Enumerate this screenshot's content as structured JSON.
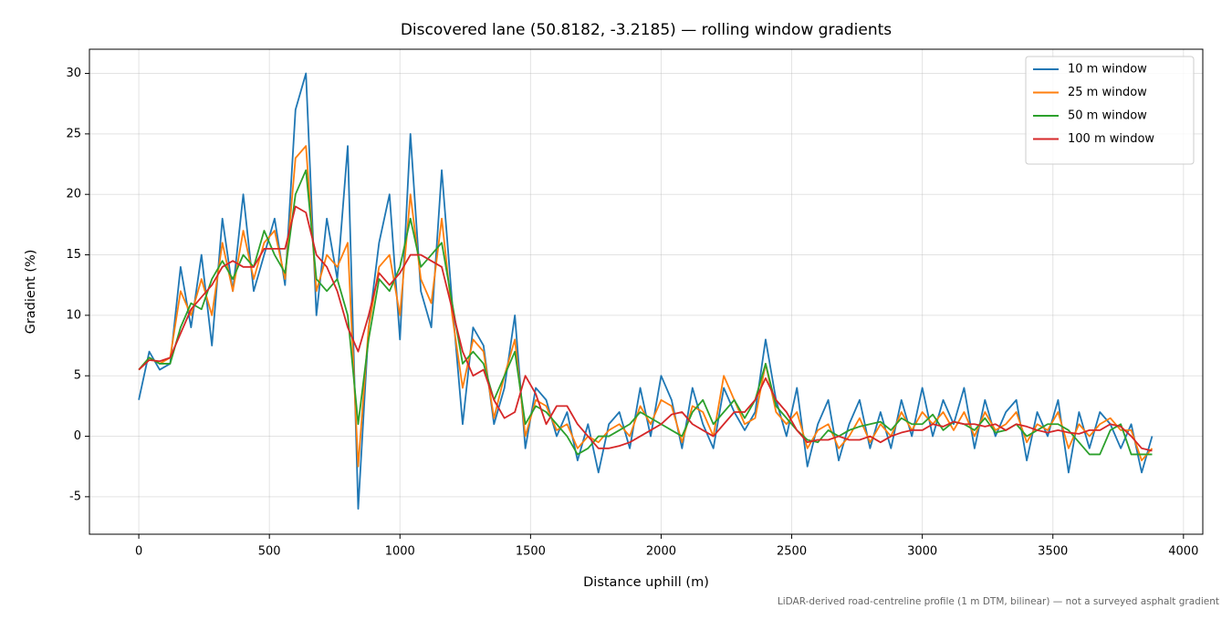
{
  "chart_data": {
    "type": "line",
    "title": "Discovered lane (50.8182, -3.2185) — rolling window gradients",
    "x_label": "Distance uphill (m)",
    "y_label": "Gradient (%)",
    "footnote": "LiDAR-derived road-centreline profile (1 m DTM, bilinear) — not a surveyed asphalt gradient",
    "xlim": [
      -189,
      4074
    ],
    "ylim": [
      -8.1,
      32
    ],
    "xticks": [
      0,
      500,
      1000,
      1500,
      2000,
      2500,
      3000,
      3500,
      4000
    ],
    "yticks": [
      -5,
      0,
      5,
      10,
      15,
      20,
      25,
      30
    ],
    "grid": true,
    "legend": "upper right",
    "x": [
      0,
      40,
      80,
      120,
      160,
      200,
      240,
      280,
      320,
      360,
      400,
      440,
      480,
      520,
      560,
      600,
      640,
      680,
      720,
      760,
      800,
      840,
      880,
      920,
      960,
      1000,
      1040,
      1080,
      1120,
      1160,
      1200,
      1240,
      1280,
      1320,
      1360,
      1400,
      1440,
      1480,
      1520,
      1560,
      1600,
      1640,
      1680,
      1720,
      1760,
      1800,
      1840,
      1880,
      1920,
      1960,
      2000,
      2040,
      2080,
      2120,
      2160,
      2200,
      2240,
      2280,
      2320,
      2360,
      2400,
      2440,
      2480,
      2520,
      2560,
      2600,
      2640,
      2680,
      2720,
      2760,
      2800,
      2840,
      2880,
      2920,
      2960,
      3000,
      3040,
      3080,
      3120,
      3160,
      3200,
      3240,
      3280,
      3320,
      3360,
      3400,
      3440,
      3480,
      3520,
      3560,
      3600,
      3640,
      3680,
      3720,
      3760,
      3800,
      3840,
      3880
    ],
    "series": [
      {
        "name": "10 m window",
        "color": "#1f77b4",
        "values": [
          3,
          7,
          5.5,
          6,
          14,
          9,
          15,
          7.5,
          18,
          12,
          20,
          12,
          15,
          18,
          12.5,
          27,
          30,
          10,
          18,
          13,
          24,
          -6,
          9,
          16,
          20,
          8,
          25,
          12,
          9,
          22,
          11,
          1,
          9,
          7.5,
          1,
          4,
          10,
          -1,
          4,
          3,
          0,
          2,
          -2,
          1,
          -3,
          1,
          2,
          -1,
          4,
          0,
          5,
          3,
          -1,
          4,
          1,
          -1,
          4,
          2,
          0.5,
          2,
          8,
          3,
          0,
          4,
          -2.5,
          1,
          3,
          -2,
          1,
          3,
          -1,
          2,
          -1,
          3,
          0,
          4,
          0,
          3,
          1,
          4,
          -1,
          3,
          0,
          2,
          3,
          -2,
          2,
          0,
          3,
          -3,
          2,
          -1,
          2,
          1,
          -1,
          1,
          -3,
          0
        ]
      },
      {
        "name": "25 m window",
        "color": "#ff7f0e",
        "values": [
          5.5,
          6.5,
          6,
          6.5,
          12,
          10,
          13,
          10,
          16,
          12,
          17,
          13,
          16,
          17,
          13,
          23,
          24,
          12,
          15,
          14,
          16,
          -2.5,
          9,
          14,
          15,
          10,
          20,
          13,
          11,
          18,
          10,
          4,
          8,
          7,
          1.5,
          5,
          8,
          0,
          3,
          2.5,
          0.5,
          1,
          -1,
          0,
          -0.5,
          0.5,
          1,
          0,
          2.5,
          1,
          3,
          2.5,
          -0.5,
          2.5,
          2,
          0,
          5,
          3,
          1,
          1.5,
          6,
          2,
          1,
          2,
          -1,
          0.5,
          1,
          -1,
          0,
          1.5,
          -0.5,
          1,
          0,
          2,
          0.5,
          2,
          1,
          2,
          0.5,
          2,
          0,
          2,
          0.5,
          1,
          2,
          -0.5,
          1,
          0.5,
          2,
          -1,
          1,
          0,
          1,
          1.5,
          0.5,
          0.5,
          -2,
          -1
        ]
      },
      {
        "name": "50 m window",
        "color": "#2ca02c",
        "values": [
          5.5,
          6.5,
          6,
          6,
          9,
          11,
          10.5,
          13,
          14.5,
          13,
          15,
          14,
          17,
          15,
          13.5,
          20,
          22,
          13,
          12,
          13,
          10,
          1,
          8,
          13,
          12,
          14,
          18,
          14,
          15,
          16,
          11,
          6,
          7,
          6,
          3,
          5,
          7,
          1,
          2.5,
          2,
          1,
          0,
          -1.5,
          -1,
          0,
          0,
          0.5,
          1,
          2,
          1.5,
          1,
          0.5,
          0,
          2,
          3,
          1,
          2,
          3,
          1.5,
          3,
          6,
          2.5,
          1.5,
          0.5,
          -0.3,
          -0.5,
          0.5,
          0,
          0.5,
          0.8,
          1,
          1.2,
          0.5,
          1.5,
          1,
          1,
          1.8,
          0.5,
          1.2,
          1,
          0.5,
          1.5,
          0.3,
          0.5,
          1,
          0,
          0.5,
          1,
          1,
          0.5,
          -0.5,
          -1.5,
          -1.5,
          0.5,
          1,
          -1.5,
          -1.5,
          -1.5
        ]
      },
      {
        "name": "100 m window",
        "color": "#d62728",
        "values": [
          5.5,
          6.3,
          6.2,
          6.5,
          8.5,
          10.5,
          11.5,
          12.5,
          14,
          14.5,
          14,
          14,
          15.5,
          15.5,
          15.5,
          19,
          18.5,
          15,
          14,
          12,
          9,
          7,
          10,
          13.5,
          12.5,
          13.5,
          15,
          15,
          14.5,
          14,
          10.5,
          7,
          5,
          5.5,
          3,
          1.5,
          2,
          5,
          3.5,
          1,
          2.5,
          2.5,
          1,
          0,
          -1,
          -1,
          -0.8,
          -0.5,
          0,
          0.5,
          1,
          1.8,
          2,
          1,
          0.5,
          0,
          1,
          2,
          2,
          3,
          4.8,
          3,
          2,
          0.5,
          -0.5,
          -0.3,
          -0.3,
          0,
          -0.3,
          -0.3,
          0,
          -0.5,
          0,
          0.3,
          0.5,
          0.5,
          1,
          0.8,
          1.2,
          1,
          1,
          0.8,
          1,
          0.5,
          1,
          0.8,
          0.5,
          0.3,
          0.5,
          0.3,
          0.2,
          0.5,
          0.5,
          1,
          0.8,
          0,
          -1,
          -1.2
        ]
      }
    ]
  }
}
